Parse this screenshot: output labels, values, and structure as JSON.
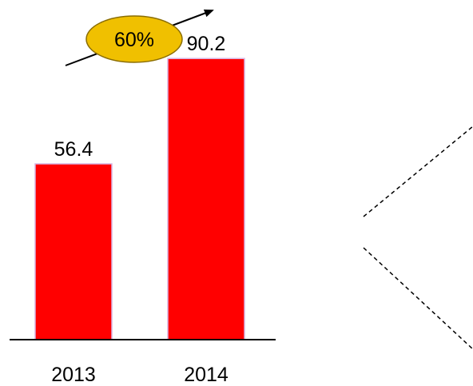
{
  "chart_data": {
    "type": "bar",
    "categories": [
      "2013",
      "2014"
    ],
    "values": [
      56.4,
      90.2
    ],
    "data_labels": [
      "56.4",
      "90.2"
    ],
    "bar_color": "#ff0000",
    "bar_edge_color": "#d8b4e2",
    "axis_color": "#000000",
    "ylim": [
      0,
      100
    ],
    "grid": false
  },
  "growth_badge": {
    "text": "60%",
    "fill_color": "#f0c000",
    "border_color": "#8a6d00",
    "arrow_direction": "up-right"
  },
  "decoration": {
    "shape": "dashed-chevron",
    "dash_color": "#000000"
  }
}
